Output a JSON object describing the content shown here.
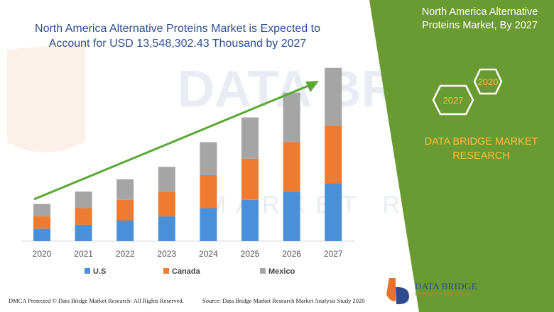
{
  "title": "North America Alternative Proteins Market is Expected to Account for USD 13,548,302.43 Thousand by 2027",
  "side_panel": {
    "title": "North America Alternative Proteins Market, By 2027",
    "hex_labels": [
      "2020",
      "2027"
    ],
    "brand": "DATA BRIDGE MARKET RESEARCH"
  },
  "footer": {
    "left": "DMCA Protected © Data Bridge Market Research- All Rights Reserved.",
    "source": "Source: Data Bridge Market Research Market Analysis Study 2020"
  },
  "logo": {
    "name": "DATA BRIDGE",
    "tagline": "MARKET RESEARCH"
  },
  "colors": {
    "us": "#4a90d9",
    "canada": "#ee7b30",
    "mexico": "#a5a5a5",
    "green_panel": "#6a9a32",
    "arrow": "#5aa834",
    "title": "#2e4f8f",
    "brand": "#f6c23e"
  },
  "chart_data": {
    "type": "bar",
    "stacked": true,
    "categories": [
      "2020",
      "2021",
      "2022",
      "2023",
      "2024",
      "2025",
      "2026",
      "2027"
    ],
    "series": [
      {
        "name": "U.S",
        "values": [
          15,
          20,
          25,
          30,
          40,
          50,
          60,
          70
        ]
      },
      {
        "name": "Canada",
        "values": [
          15,
          20,
          25,
          30,
          40,
          50,
          60,
          70
        ]
      },
      {
        "name": "Mexico",
        "values": [
          15,
          20,
          25,
          30,
          40,
          50,
          60,
          70
        ]
      }
    ],
    "ylim": [
      0,
      215
    ],
    "grid": false,
    "legend": "bottom",
    "trend_arrow": true
  }
}
